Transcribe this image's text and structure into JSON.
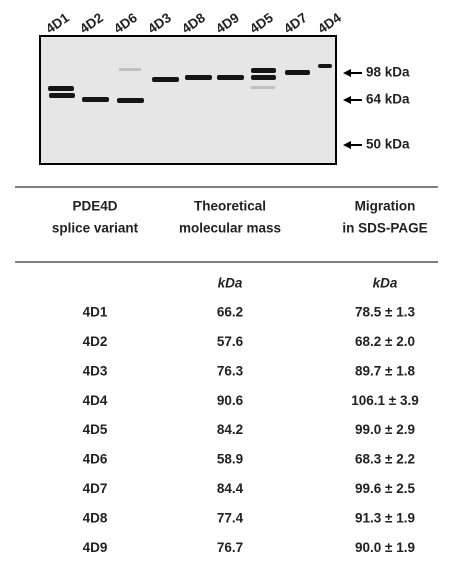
{
  "gel": {
    "lanes": [
      "4D1",
      "4D2",
      "4D6",
      "4D3",
      "4D8",
      "4D9",
      "4D5",
      "4D7",
      "4D4"
    ],
    "markers": [
      "98 kDa",
      "64 kDa",
      "50 kDa"
    ]
  },
  "table": {
    "header": [
      [
        "PDE4D",
        "splice variant"
      ],
      [
        "Theoretical",
        "molecular mass"
      ],
      [
        "Migration",
        "in SDS-PAGE"
      ]
    ],
    "units": [
      "kDa",
      "kDa"
    ],
    "rows": [
      [
        "4D1",
        "66.2",
        "78.5 ± 1.3"
      ],
      [
        "4D2",
        "57.6",
        "68.2 ± 2.0"
      ],
      [
        "4D3",
        "76.3",
        "89.7 ± 1.8"
      ],
      [
        "4D4",
        "90.6",
        "106.1 ± 3.9"
      ],
      [
        "4D5",
        "84.2",
        "99.0 ± 2.9"
      ],
      [
        "4D6",
        "58.9",
        "68.3 ± 2.2"
      ],
      [
        "4D7",
        "84.4",
        "99.6 ± 2.5"
      ],
      [
        "4D8",
        "77.4",
        "91.3 ± 1.9"
      ],
      [
        "4D9",
        "76.7",
        "90.0 ± 1.9"
      ]
    ]
  }
}
